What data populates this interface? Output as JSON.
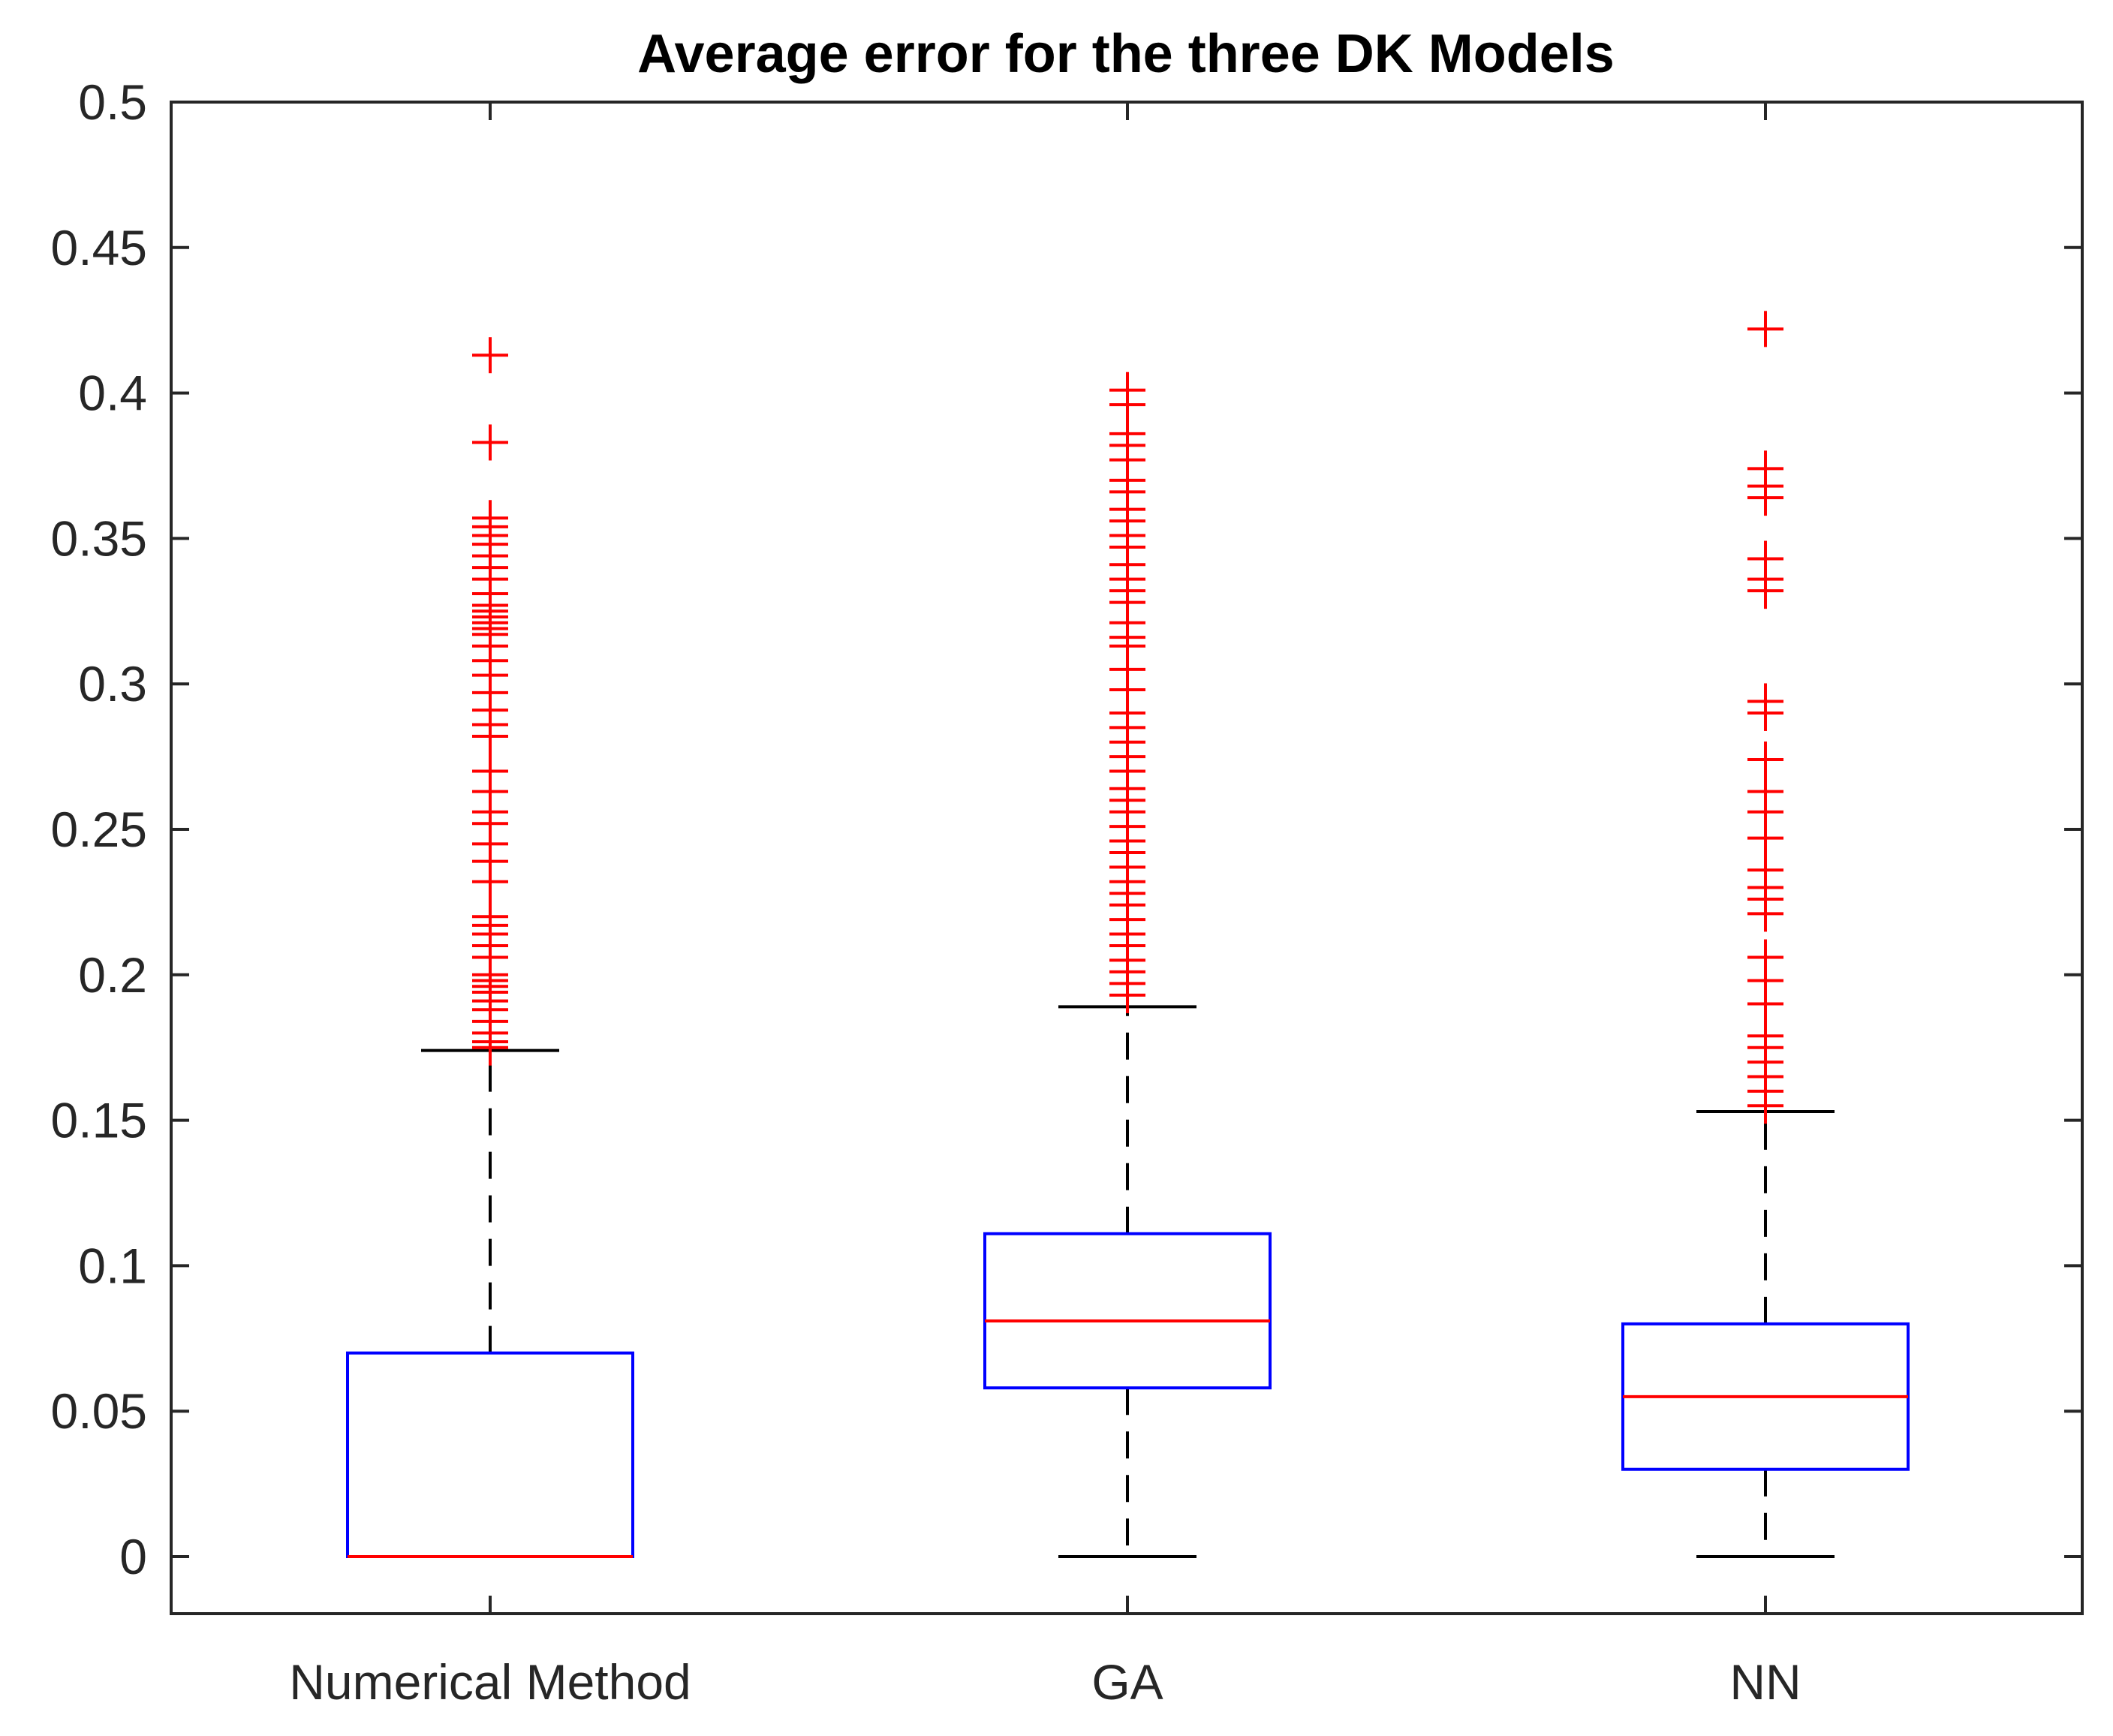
{
  "chart_data": {
    "type": "box",
    "title": "Average error for the three DK Models",
    "xlabel": "",
    "ylabel": "",
    "ylim": [
      -0.02,
      0.5
    ],
    "yticks": [
      0,
      0.05,
      0.1,
      0.15,
      0.2,
      0.25,
      0.3,
      0.35,
      0.4,
      0.45,
      0.5
    ],
    "ytick_labels": [
      "0",
      "0.05",
      "0.1",
      "0.15",
      "0.2",
      "0.25",
      "0.3",
      "0.35",
      "0.4",
      "0.45",
      "0.5"
    ],
    "grid": false,
    "categories": [
      "Numerical Method",
      "GA",
      "NN"
    ],
    "boxes": [
      {
        "label": "Numerical Method",
        "whisker_low": 0,
        "q1": 0,
        "median": 0,
        "q3": 0.07,
        "whisker_high": 0.174,
        "outliers": [
          0.413,
          0.383,
          0.357,
          0.354,
          0.351,
          0.348,
          0.344,
          0.34,
          0.336,
          0.331,
          0.327,
          0.325,
          0.323,
          0.321,
          0.319,
          0.317,
          0.313,
          0.308,
          0.303,
          0.297,
          0.291,
          0.286,
          0.282,
          0.27,
          0.263,
          0.256,
          0.252,
          0.245,
          0.239,
          0.232,
          0.22,
          0.217,
          0.214,
          0.21,
          0.206,
          0.2,
          0.198,
          0.196,
          0.194,
          0.191,
          0.188,
          0.184,
          0.18,
          0.177,
          0.175
        ]
      },
      {
        "label": "GA",
        "whisker_low": 0,
        "q1": 0.058,
        "median": 0.081,
        "q3": 0.111,
        "whisker_high": 0.189,
        "outliers": [
          0.401,
          0.396,
          0.386,
          0.382,
          0.377,
          0.37,
          0.366,
          0.36,
          0.356,
          0.351,
          0.347,
          0.341,
          0.336,
          0.332,
          0.328,
          0.321,
          0.316,
          0.313,
          0.305,
          0.298,
          0.29,
          0.285,
          0.28,
          0.275,
          0.27,
          0.264,
          0.26,
          0.256,
          0.251,
          0.246,
          0.242,
          0.237,
          0.232,
          0.228,
          0.224,
          0.219,
          0.214,
          0.21,
          0.205,
          0.201,
          0.197,
          0.193
        ]
      },
      {
        "label": "NN",
        "whisker_low": 0,
        "q1": 0.03,
        "median": 0.055,
        "q3": 0.08,
        "whisker_high": 0.153,
        "outliers": [
          0.422,
          0.374,
          0.368,
          0.364,
          0.343,
          0.336,
          0.332,
          0.294,
          0.29,
          0.274,
          0.263,
          0.256,
          0.247,
          0.236,
          0.23,
          0.226,
          0.221,
          0.206,
          0.198,
          0.19,
          0.179,
          0.175,
          0.17,
          0.165,
          0.16,
          0.155
        ]
      }
    ],
    "colors": {
      "box": "#0000ff",
      "median": "#ff0000",
      "outlier": "#ff0000",
      "whisker": "#000000",
      "axes": "#262626"
    }
  }
}
